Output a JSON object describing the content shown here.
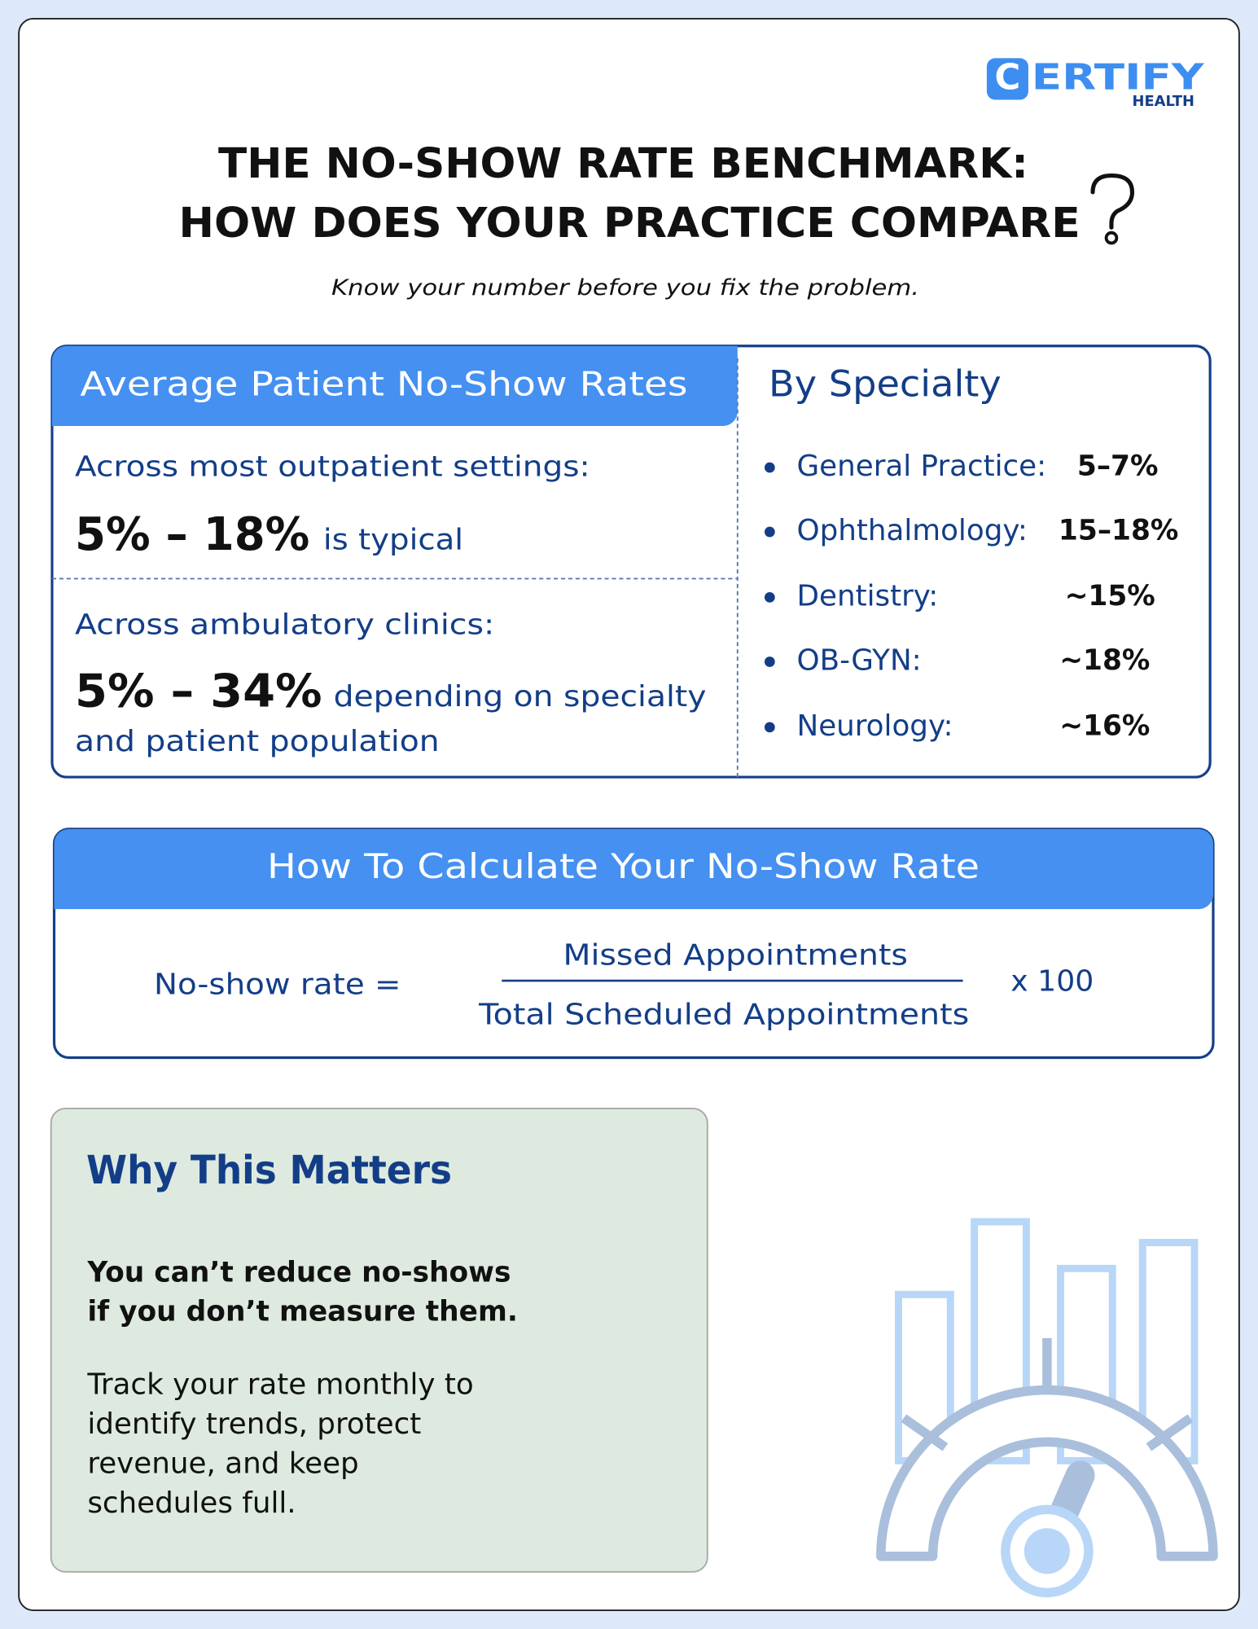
{
  "logo": {
    "mark": "C",
    "name": "ERTIFY",
    "sub": "HEALTH"
  },
  "header": {
    "title_lines": [
      "THE NO-SHOW RATE BENCHMARK:",
      "HOW DOES YOUR PRACTICE COMPARE"
    ],
    "subtitle": "Know your number before you fix the problem."
  },
  "average_rates": {
    "heading": "Average Patient No-Show Rates",
    "groups": [
      {
        "label": "Across most outpatient settings:",
        "range": "5% – 18%",
        "note_lines": [
          "is typical"
        ]
      },
      {
        "label": "Across ambulatory clinics:",
        "range": "5% – 34%",
        "note_lines": [
          "depending on specialty",
          "and patient population"
        ]
      }
    ]
  },
  "by_specialty": {
    "heading": "By Specialty",
    "items": [
      {
        "name": "General Practice:",
        "rate": "5–7%"
      },
      {
        "name": "Ophthalmology:",
        "rate": "15–18%"
      },
      {
        "name": "Dentistry:",
        "rate": "~15%"
      },
      {
        "name": "OB-GYN:",
        "rate": "~18%"
      },
      {
        "name": "Neurology:",
        "rate": "~16%"
      }
    ]
  },
  "calculation": {
    "heading": "How To Calculate Your No-Show Rate",
    "lhs": "No-show rate =",
    "numerator": "Missed Appointments",
    "denominator": "Total Scheduled Appointments",
    "multiplier": "x 100"
  },
  "why": {
    "heading": "Why This Matters",
    "emphasis_lines": [
      "You can’t reduce no-shows",
      "if you don’t measure them."
    ],
    "body_lines": [
      "Track your rate monthly to",
      "identify trends, protect",
      "revenue, and keep",
      "schedules full."
    ]
  }
}
